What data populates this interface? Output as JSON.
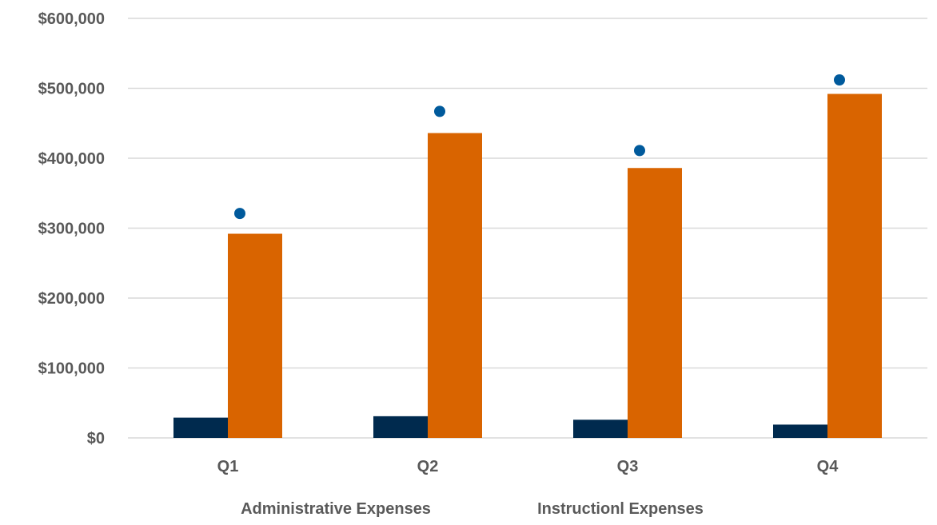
{
  "chart_data": {
    "type": "bar",
    "title": "",
    "xlabel": "",
    "ylabel": "",
    "categories": [
      "Q1",
      "Q2",
      "Q3",
      "Q4"
    ],
    "ylim": [
      0,
      600000
    ],
    "yticks": [
      0,
      100000,
      200000,
      300000,
      400000,
      500000,
      600000
    ],
    "ytick_labels": [
      "$0",
      "$100,000",
      "$200,000",
      "$300,000",
      "$400,000",
      "$500,000",
      "$600,000"
    ],
    "grid": true,
    "legend_position": "bottom",
    "series": [
      {
        "name": "Administrative Expenses",
        "type": "bar",
        "color": "#002a4e",
        "values": [
          29000,
          31000,
          26000,
          19000
        ]
      },
      {
        "name": "Instructionl Expenses",
        "type": "bar",
        "color": "#d96400",
        "values": [
          292000,
          436000,
          386000,
          492000
        ]
      },
      {
        "name": "",
        "type": "scatter",
        "color": "#005a9c",
        "values": [
          321000,
          467000,
          411000,
          512000
        ]
      }
    ]
  }
}
